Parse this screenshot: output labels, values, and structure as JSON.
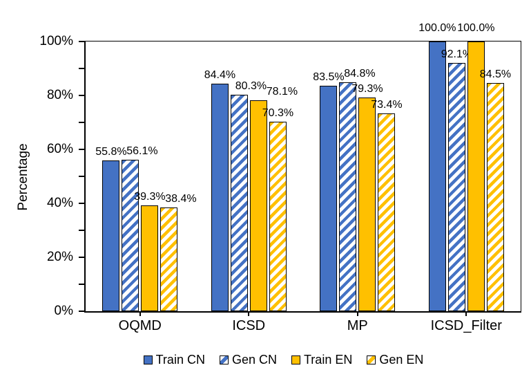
{
  "chart_data": {
    "type": "bar",
    "title": "",
    "ylabel": "Percentage",
    "xlabel": "",
    "ylim": [
      0,
      100
    ],
    "minor_tick_step": 10,
    "grid": false,
    "legend_position": "bottom",
    "label_format": "{value}%",
    "categories": [
      "OQMD",
      "ICSD",
      "MP",
      "ICSD_Filter"
    ],
    "yticks": [
      {
        "value": 0,
        "label": "0%"
      },
      {
        "value": 20,
        "label": "20%"
      },
      {
        "value": 40,
        "label": "40%"
      },
      {
        "value": 60,
        "label": "60%"
      },
      {
        "value": 80,
        "label": "80%"
      },
      {
        "value": 100,
        "label": "100%"
      }
    ],
    "series": [
      {
        "name": "Train CN",
        "color": "#4472C4",
        "pattern": "solid",
        "values": [
          55.8,
          84.4,
          83.5,
          100.0
        ]
      },
      {
        "name": "Gen CN",
        "color": "#4472C4",
        "pattern": "hatch",
        "values": [
          56.1,
          80.3,
          84.8,
          92.1
        ]
      },
      {
        "name": "Train EN",
        "color": "#FFC000",
        "pattern": "solid",
        "values": [
          39.3,
          78.1,
          79.3,
          100.0
        ]
      },
      {
        "name": "Gen EN",
        "color": "#FFC000",
        "pattern": "hatch",
        "values": [
          38.4,
          70.3,
          73.4,
          84.5
        ]
      }
    ],
    "colors": {
      "bar_border": "#000000",
      "axis": "#000000",
      "text": "#000000",
      "background": "#ffffff"
    }
  }
}
